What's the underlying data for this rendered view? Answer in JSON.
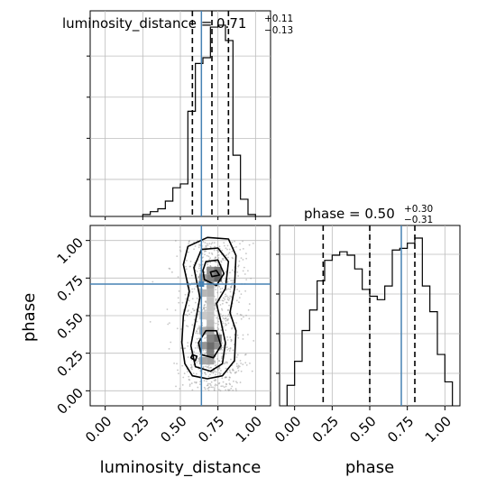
{
  "chart_data": [
    {
      "id": "luminosity_distance-hist",
      "type": "histogram",
      "title": "luminosity_distance = 0.71",
      "title_upper": "+0.11",
      "title_lower": "−0.13",
      "xlim": [
        -0.1,
        1.1
      ],
      "bin_edges": [
        0.25,
        0.3,
        0.35,
        0.4,
        0.45,
        0.5,
        0.55,
        0.6,
        0.65,
        0.7,
        0.75,
        0.8,
        0.85,
        0.9,
        0.95,
        1.0
      ],
      "counts": [
        0.01,
        0.025,
        0.04,
        0.08,
        0.15,
        0.17,
        0.55,
        0.8,
        0.83,
        0.99,
        1.0,
        0.92,
        0.32,
        0.09,
        0.01
      ],
      "quantile_lines": [
        0.58,
        0.71,
        0.82
      ],
      "truth": 0.64,
      "grid": true,
      "line_color": "#000000",
      "truth_color": "#4682b4"
    },
    {
      "id": "phase-hist",
      "type": "histogram",
      "title": "phase = 0.50",
      "title_upper": "+0.30",
      "title_lower": "−0.31",
      "xlim": [
        -0.1,
        1.1
      ],
      "bin_edges": [
        -0.05,
        0.0,
        0.05,
        0.1,
        0.15,
        0.2,
        0.25,
        0.3,
        0.35,
        0.4,
        0.45,
        0.5,
        0.55,
        0.6,
        0.65,
        0.7,
        0.75,
        0.8,
        0.85,
        0.9,
        0.95,
        1.0,
        1.05
      ],
      "counts": [
        0.12,
        0.26,
        0.44,
        0.56,
        0.73,
        0.85,
        0.88,
        0.9,
        0.88,
        0.8,
        0.68,
        0.64,
        0.62,
        0.7,
        0.91,
        0.92,
        0.95,
        0.98,
        0.7,
        0.55,
        0.3,
        0.14
      ],
      "quantile_lines": [
        0.19,
        0.5,
        0.8
      ],
      "truth": 0.71,
      "ticks": [
        0.0,
        0.25,
        0.5,
        0.75,
        1.0
      ],
      "tick_labels": [
        "0.00",
        "0.25",
        "0.50",
        "0.75",
        "1.00"
      ],
      "xlabel": "phase",
      "grid": true,
      "line_color": "#000000",
      "truth_color": "#4682b4"
    },
    {
      "id": "luminosity_distance-vs-phase",
      "type": "heatmap",
      "xlim": [
        -0.1,
        1.1
      ],
      "ylim": [
        -0.1,
        1.1
      ],
      "x_ticks": [
        0.0,
        0.25,
        0.5,
        0.75,
        1.0
      ],
      "x_tick_labels": [
        "0.00",
        "0.25",
        "0.50",
        "0.75",
        "1.00"
      ],
      "y_ticks": [
        0.0,
        0.25,
        0.5,
        0.75,
        1.0
      ],
      "y_tick_labels": [
        "0.00",
        "0.25",
        "0.50",
        "0.75",
        "1.00"
      ],
      "xlabel": "luminosity_distance",
      "ylabel": "phase",
      "truth": [
        0.64,
        0.71
      ],
      "density_cells": [
        {
          "x": 0.7,
          "y": 0.8,
          "v": 0.55
        },
        {
          "x": 0.75,
          "y": 0.8,
          "v": 0.7
        },
        {
          "x": 0.7,
          "y": 0.75,
          "v": 0.6
        },
        {
          "x": 0.75,
          "y": 0.75,
          "v": 0.8
        },
        {
          "x": 0.65,
          "y": 0.75,
          "v": 0.45
        },
        {
          "x": 0.7,
          "y": 0.7,
          "v": 0.4
        },
        {
          "x": 0.65,
          "y": 0.65,
          "v": 0.3
        },
        {
          "x": 0.7,
          "y": 0.65,
          "v": 0.35
        },
        {
          "x": 0.7,
          "y": 0.6,
          "v": 0.25
        },
        {
          "x": 0.7,
          "y": 0.55,
          "v": 0.22
        },
        {
          "x": 0.65,
          "y": 0.5,
          "v": 0.2
        },
        {
          "x": 0.7,
          "y": 0.5,
          "v": 0.25
        },
        {
          "x": 0.7,
          "y": 0.45,
          "v": 0.3
        },
        {
          "x": 0.65,
          "y": 0.4,
          "v": 0.35
        },
        {
          "x": 0.7,
          "y": 0.4,
          "v": 0.45
        },
        {
          "x": 0.7,
          "y": 0.35,
          "v": 0.6
        },
        {
          "x": 0.75,
          "y": 0.35,
          "v": 0.7
        },
        {
          "x": 0.65,
          "y": 0.3,
          "v": 0.5
        },
        {
          "x": 0.7,
          "y": 0.3,
          "v": 0.75
        },
        {
          "x": 0.75,
          "y": 0.3,
          "v": 0.55
        },
        {
          "x": 0.7,
          "y": 0.25,
          "v": 0.65
        },
        {
          "x": 0.65,
          "y": 0.2,
          "v": 0.4
        },
        {
          "x": 0.7,
          "y": 0.2,
          "v": 0.45
        }
      ],
      "contours": [
        [
          [
            0.58,
            0.1
          ],
          [
            0.68,
            0.08
          ],
          [
            0.78,
            0.1
          ],
          [
            0.86,
            0.2
          ],
          [
            0.87,
            0.4
          ],
          [
            0.83,
            0.52
          ],
          [
            0.86,
            0.68
          ],
          [
            0.87,
            0.9
          ],
          [
            0.82,
            1.01
          ],
          [
            0.68,
            1.02
          ],
          [
            0.55,
            0.96
          ],
          [
            0.52,
            0.84
          ],
          [
            0.56,
            0.66
          ],
          [
            0.52,
            0.5
          ],
          [
            0.51,
            0.32
          ],
          [
            0.53,
            0.18
          ]
        ],
        [
          [
            0.6,
            0.16
          ],
          [
            0.7,
            0.13
          ],
          [
            0.78,
            0.18
          ],
          [
            0.8,
            0.32
          ],
          [
            0.77,
            0.46
          ],
          [
            0.74,
            0.58
          ],
          [
            0.8,
            0.68
          ],
          [
            0.82,
            0.86
          ],
          [
            0.75,
            0.95
          ],
          [
            0.64,
            0.94
          ],
          [
            0.59,
            0.82
          ],
          [
            0.63,
            0.62
          ],
          [
            0.6,
            0.46
          ],
          [
            0.57,
            0.3
          ]
        ],
        [
          [
            0.64,
            0.24
          ],
          [
            0.72,
            0.22
          ],
          [
            0.77,
            0.3
          ],
          [
            0.74,
            0.4
          ],
          [
            0.67,
            0.4
          ],
          [
            0.62,
            0.32
          ]
        ],
        [
          [
            0.66,
            0.74
          ],
          [
            0.74,
            0.7
          ],
          [
            0.79,
            0.78
          ],
          [
            0.75,
            0.87
          ],
          [
            0.67,
            0.86
          ],
          [
            0.65,
            0.8
          ]
        ],
        [
          [
            0.71,
            0.76
          ],
          [
            0.76,
            0.77
          ],
          [
            0.74,
            0.8
          ],
          [
            0.7,
            0.79
          ]
        ],
        [
          [
            0.57,
            0.22
          ],
          [
            0.6,
            0.2
          ],
          [
            0.61,
            0.23
          ],
          [
            0.58,
            0.24
          ]
        ]
      ],
      "scatter_color": "#999999",
      "contour_color": "#000000",
      "truth_color": "#4682b4"
    }
  ]
}
